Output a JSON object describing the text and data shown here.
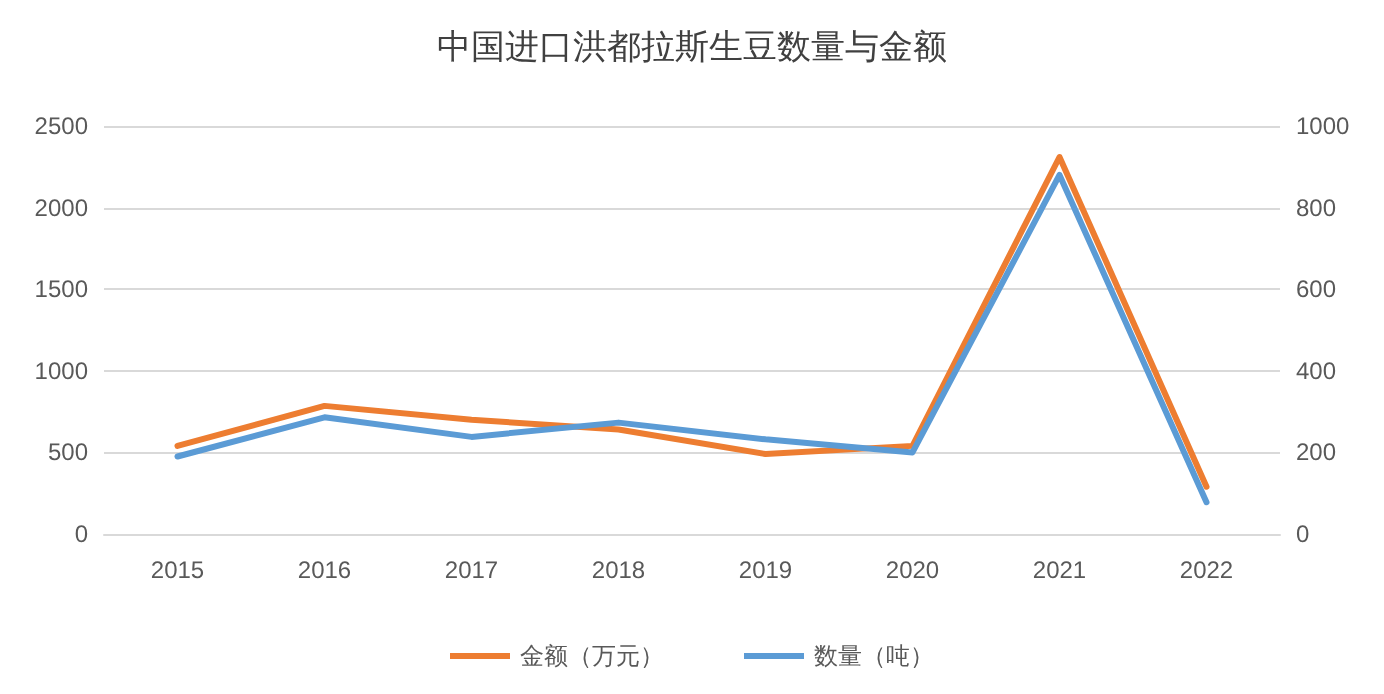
{
  "chart_data": {
    "type": "line",
    "title": "中国进口洪都拉斯生豆数量与金额",
    "categories": [
      "2015",
      "2016",
      "2017",
      "2018",
      "2019",
      "2020",
      "2021",
      "2022"
    ],
    "series": [
      {
        "name": "金额（万元）",
        "color": "#ed7d31",
        "values": [
          540,
          785,
          700,
          640,
          490,
          540,
          2310,
          290
        ]
      },
      {
        "name": "数量（吨）",
        "color": "#5b9bd5",
        "axis": "y2",
        "values": [
          190,
          286,
          238,
          273,
          232,
          200,
          880,
          78
        ]
      }
    ],
    "ylim": [
      0,
      2500
    ],
    "yticks": [
      0,
      500,
      1000,
      1500,
      2000,
      2500
    ],
    "y2lim": [
      0,
      1000
    ],
    "y2ticks": [
      0,
      200,
      400,
      600,
      800,
      1000
    ],
    "grid": "y",
    "legend": "bottom",
    "marker": "none",
    "line_style": "solid"
  }
}
